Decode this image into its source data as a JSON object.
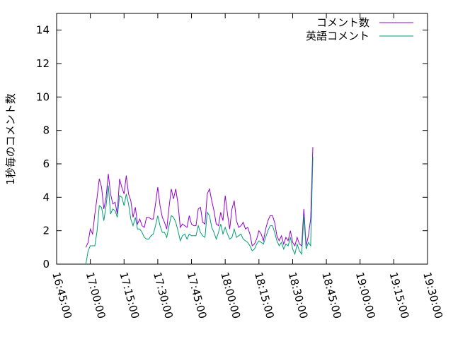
{
  "chart_data": {
    "type": "line",
    "ylabel": "1秒毎のコメント数",
    "xlabel": "",
    "title": "",
    "ylim": [
      0,
      15
    ],
    "yticks": [
      0,
      2,
      4,
      6,
      8,
      10,
      12,
      14
    ],
    "xlim": [
      "16:45:00",
      "19:30:00"
    ],
    "xticks": [
      "16:45:00",
      "17:00:00",
      "17:15:00",
      "17:30:00",
      "17:45:00",
      "18:00:00",
      "18:15:00",
      "18:30:00",
      "18:45:00",
      "19:00:00",
      "19:15:00",
      "19:30:00"
    ],
    "legend_position": "top-right",
    "grid": false,
    "series": [
      {
        "name": "コメント数",
        "color": "#9400d3",
        "points": [
          [
            "16:58:00",
            1.0
          ],
          [
            "16:59:00",
            1.3
          ],
          [
            "17:00:00",
            2.1
          ],
          [
            "17:01:00",
            1.8
          ],
          [
            "17:02:00",
            3.0
          ],
          [
            "17:03:00",
            4.0
          ],
          [
            "17:04:00",
            5.1
          ],
          [
            "17:05:00",
            4.6
          ],
          [
            "17:06:00",
            3.3
          ],
          [
            "17:07:00",
            4.0
          ],
          [
            "17:08:00",
            5.4
          ],
          [
            "17:09:00",
            4.2
          ],
          [
            "17:10:00",
            3.6
          ],
          [
            "17:11:00",
            3.7
          ],
          [
            "17:12:00",
            3.0
          ],
          [
            "17:13:00",
            5.1
          ],
          [
            "17:14:00",
            4.6
          ],
          [
            "17:15:00",
            4.2
          ],
          [
            "17:16:00",
            5.3
          ],
          [
            "17:17:00",
            4.2
          ],
          [
            "17:18:00",
            3.8
          ],
          [
            "17:19:00",
            2.8
          ],
          [
            "17:20:00",
            3.4
          ],
          [
            "17:21:00",
            2.4
          ],
          [
            "17:22:00",
            2.7
          ],
          [
            "17:23:00",
            2.3
          ],
          [
            "17:24:00",
            2.2
          ],
          [
            "17:25:00",
            2.8
          ],
          [
            "17:26:00",
            2.8
          ],
          [
            "17:27:00",
            2.7
          ],
          [
            "17:28:00",
            2.7
          ],
          [
            "17:29:00",
            3.6
          ],
          [
            "17:30:00",
            4.6
          ],
          [
            "17:31:00",
            3.5
          ],
          [
            "17:32:00",
            2.8
          ],
          [
            "17:33:00",
            2.5
          ],
          [
            "17:34:00",
            2.1
          ],
          [
            "17:35:00",
            3.4
          ],
          [
            "17:36:00",
            4.5
          ],
          [
            "17:37:00",
            3.9
          ],
          [
            "17:38:00",
            4.5
          ],
          [
            "17:39:00",
            3.6
          ],
          [
            "17:40:00",
            2.2
          ],
          [
            "17:41:00",
            2.4
          ],
          [
            "17:42:00",
            2.3
          ],
          [
            "17:43:00",
            2.2
          ],
          [
            "17:44:00",
            2.9
          ],
          [
            "17:45:00",
            2.4
          ],
          [
            "17:46:00",
            2.3
          ],
          [
            "17:47:00",
            2.3
          ],
          [
            "17:48:00",
            3.3
          ],
          [
            "17:49:00",
            3.4
          ],
          [
            "17:50:00",
            2.5
          ],
          [
            "17:51:00",
            2.4
          ],
          [
            "17:52:00",
            4.2
          ],
          [
            "17:53:00",
            4.5
          ],
          [
            "17:54:00",
            3.8
          ],
          [
            "17:55:00",
            3.2
          ],
          [
            "17:56:00",
            2.4
          ],
          [
            "17:57:00",
            2.3
          ],
          [
            "17:58:00",
            3.1
          ],
          [
            "17:59:00",
            2.6
          ],
          [
            "18:00:00",
            4.1
          ],
          [
            "18:01:00",
            3.0
          ],
          [
            "18:02:00",
            2.1
          ],
          [
            "18:03:00",
            3.3
          ],
          [
            "18:04:00",
            3.8
          ],
          [
            "18:05:00",
            2.6
          ],
          [
            "18:06:00",
            2.2
          ],
          [
            "18:07:00",
            2.3
          ],
          [
            "18:08:00",
            2.5
          ],
          [
            "18:09:00",
            2.1
          ],
          [
            "18:10:00",
            2.2
          ],
          [
            "18:11:00",
            1.8
          ],
          [
            "18:12:00",
            1.1
          ],
          [
            "18:13:00",
            1.2
          ],
          [
            "18:14:00",
            1.5
          ],
          [
            "18:15:00",
            2.0
          ],
          [
            "18:16:00",
            1.8
          ],
          [
            "18:17:00",
            1.4
          ],
          [
            "18:18:00",
            2.1
          ],
          [
            "18:19:00",
            2.6
          ],
          [
            "18:20:00",
            2.9
          ],
          [
            "18:21:00",
            2.9
          ],
          [
            "18:22:00",
            2.5
          ],
          [
            "18:23:00",
            1.7
          ],
          [
            "18:24:00",
            1.4
          ],
          [
            "18:25:00",
            1.7
          ],
          [
            "18:26:00",
            1.2
          ],
          [
            "18:27:00",
            1.6
          ],
          [
            "18:28:00",
            1.4
          ],
          [
            "18:29:00",
            2.0
          ],
          [
            "18:30:00",
            1.3
          ],
          [
            "18:31:00",
            1.1
          ],
          [
            "18:32:00",
            1.6
          ],
          [
            "18:33:00",
            1.2
          ],
          [
            "18:34:00",
            1.1
          ],
          [
            "18:35:00",
            3.3
          ],
          [
            "18:36:00",
            1.1
          ],
          [
            "18:37:00",
            1.7
          ],
          [
            "18:38:00",
            2.7
          ],
          [
            "18:39:00",
            7.0
          ]
        ]
      },
      {
        "name": "英語コメント",
        "color": "#009e73",
        "points": [
          [
            "16:58:00",
            0.0
          ],
          [
            "16:59:00",
            0.8
          ],
          [
            "17:00:00",
            1.1
          ],
          [
            "17:01:00",
            1.1
          ],
          [
            "17:02:00",
            1.1
          ],
          [
            "17:03:00",
            2.0
          ],
          [
            "17:04:00",
            3.5
          ],
          [
            "17:05:00",
            3.4
          ],
          [
            "17:06:00",
            2.6
          ],
          [
            "17:07:00",
            3.5
          ],
          [
            "17:08:00",
            4.7
          ],
          [
            "17:09:00",
            3.0
          ],
          [
            "17:10:00",
            3.3
          ],
          [
            "17:11:00",
            3.2
          ],
          [
            "17:12:00",
            2.8
          ],
          [
            "17:13:00",
            4.1
          ],
          [
            "17:14:00",
            4.0
          ],
          [
            "17:15:00",
            3.5
          ],
          [
            "17:16:00",
            4.2
          ],
          [
            "17:17:00",
            3.6
          ],
          [
            "17:18:00",
            2.7
          ],
          [
            "17:19:00",
            2.3
          ],
          [
            "17:20:00",
            2.8
          ],
          [
            "17:21:00",
            2.1
          ],
          [
            "17:22:00",
            2.1
          ],
          [
            "17:23:00",
            1.9
          ],
          [
            "17:24:00",
            1.6
          ],
          [
            "17:25:00",
            1.5
          ],
          [
            "17:26:00",
            1.5
          ],
          [
            "17:27:00",
            1.7
          ],
          [
            "17:28:00",
            1.8
          ],
          [
            "17:29:00",
            2.3
          ],
          [
            "17:30:00",
            2.9
          ],
          [
            "17:31:00",
            2.3
          ],
          [
            "17:32:00",
            1.9
          ],
          [
            "17:33:00",
            1.9
          ],
          [
            "17:34:00",
            1.6
          ],
          [
            "17:35:00",
            2.3
          ],
          [
            "17:36:00",
            2.9
          ],
          [
            "17:37:00",
            2.8
          ],
          [
            "17:38:00",
            2.5
          ],
          [
            "17:39:00",
            2.0
          ],
          [
            "17:40:00",
            1.4
          ],
          [
            "17:41:00",
            1.7
          ],
          [
            "17:42:00",
            1.8
          ],
          [
            "17:43:00",
            1.5
          ],
          [
            "17:44:00",
            1.8
          ],
          [
            "17:45:00",
            1.7
          ],
          [
            "17:46:00",
            1.7
          ],
          [
            "17:47:00",
            1.7
          ],
          [
            "17:48:00",
            2.3
          ],
          [
            "17:49:00",
            1.9
          ],
          [
            "17:50:00",
            1.7
          ],
          [
            "17:51:00",
            1.6
          ],
          [
            "17:52:00",
            3.1
          ],
          [
            "17:53:00",
            2.9
          ],
          [
            "17:54:00",
            2.2
          ],
          [
            "17:55:00",
            1.9
          ],
          [
            "17:56:00",
            1.5
          ],
          [
            "17:57:00",
            1.9
          ],
          [
            "17:58:00",
            2.4
          ],
          [
            "17:59:00",
            1.8
          ],
          [
            "18:00:00",
            2.2
          ],
          [
            "18:01:00",
            1.8
          ],
          [
            "18:02:00",
            1.5
          ],
          [
            "18:03:00",
            1.6
          ],
          [
            "18:04:00",
            2.1
          ],
          [
            "18:05:00",
            1.6
          ],
          [
            "18:06:00",
            1.7
          ],
          [
            "18:07:00",
            1.8
          ],
          [
            "18:08:00",
            1.5
          ],
          [
            "18:09:00",
            1.4
          ],
          [
            "18:10:00",
            1.3
          ],
          [
            "18:11:00",
            1.1
          ],
          [
            "18:12:00",
            0.8
          ],
          [
            "18:13:00",
            0.9
          ],
          [
            "18:14:00",
            1.2
          ],
          [
            "18:15:00",
            1.4
          ],
          [
            "18:16:00",
            1.3
          ],
          [
            "18:17:00",
            1.2
          ],
          [
            "18:18:00",
            1.6
          ],
          [
            "18:19:00",
            2.0
          ],
          [
            "18:20:00",
            2.3
          ],
          [
            "18:21:00",
            2.3
          ],
          [
            "18:22:00",
            1.9
          ],
          [
            "18:23:00",
            1.4
          ],
          [
            "18:24:00",
            1.1
          ],
          [
            "18:25:00",
            1.3
          ],
          [
            "18:26:00",
            0.9
          ],
          [
            "18:27:00",
            1.2
          ],
          [
            "18:28:00",
            1.1
          ],
          [
            "18:29:00",
            1.6
          ],
          [
            "18:30:00",
            0.9
          ],
          [
            "18:31:00",
            0.6
          ],
          [
            "18:32:00",
            1.2
          ],
          [
            "18:33:00",
            0.8
          ],
          [
            "18:34:00",
            0.6
          ],
          [
            "18:35:00",
            2.9
          ],
          [
            "18:36:00",
            0.9
          ],
          [
            "18:37:00",
            1.3
          ],
          [
            "18:38:00",
            1.1
          ],
          [
            "18:39:00",
            6.4
          ]
        ]
      }
    ]
  }
}
